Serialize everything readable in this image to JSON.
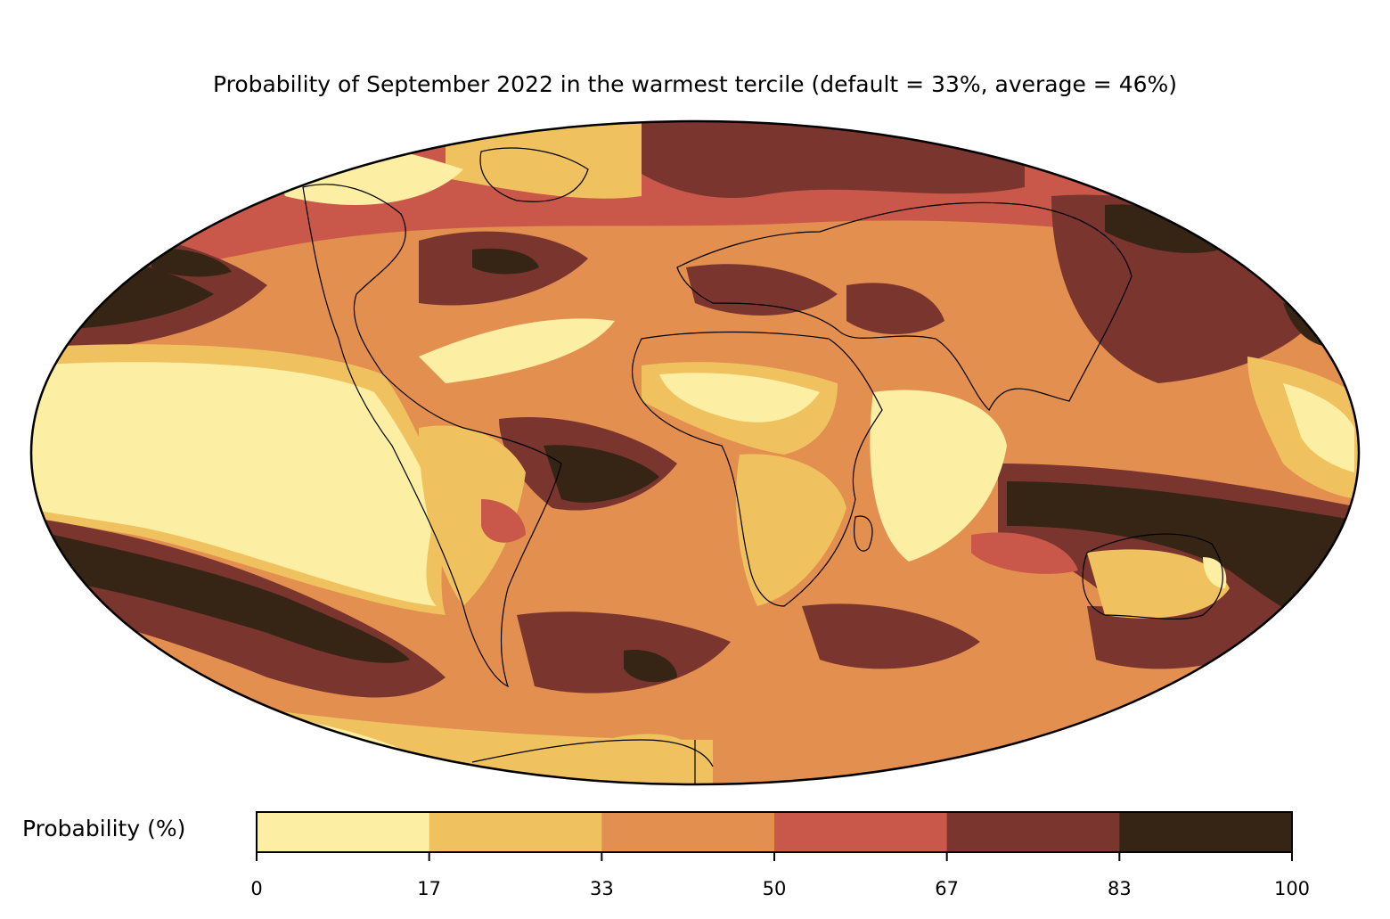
{
  "title": "Probability of September 2022 in the warmest tercile (default = 33%, average = 46%)",
  "map": {
    "projection": "Mollweide",
    "variable": "Probability of warmest tercile"
  },
  "colorbar": {
    "label": "Probability (%)",
    "ticks": [
      "0",
      "17",
      "33",
      "50",
      "67",
      "83",
      "100"
    ],
    "bins": [
      {
        "from": 0,
        "to": 17,
        "color": "#fcefa3"
      },
      {
        "from": 17,
        "to": 33,
        "color": "#f0c25f"
      },
      {
        "from": 33,
        "to": 50,
        "color": "#e38f4f"
      },
      {
        "from": 50,
        "to": 67,
        "color": "#c9584a"
      },
      {
        "from": 67,
        "to": 83,
        "color": "#7a352f"
      },
      {
        "from": 83,
        "to": 100,
        "color": "#362515"
      }
    ]
  }
}
